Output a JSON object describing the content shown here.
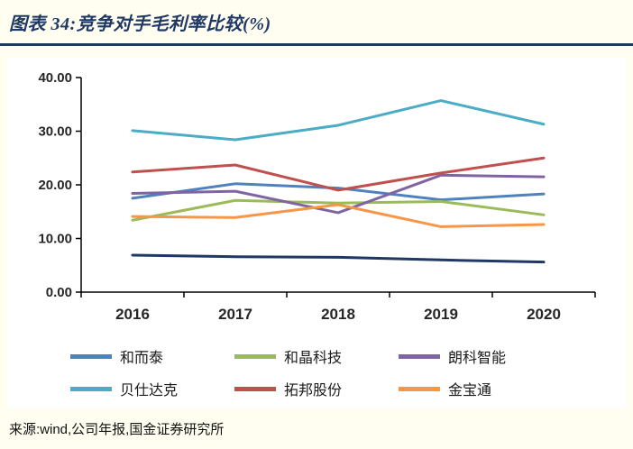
{
  "header": {
    "title": "图表 34:竞争对手毛利率比较(%)"
  },
  "chart_data": {
    "type": "line",
    "title": "竞争对手毛利率比较(%)",
    "xlabel": "",
    "ylabel": "",
    "categories": [
      "2016",
      "2017",
      "2018",
      "2019",
      "2020"
    ],
    "series": [
      {
        "name": "和而泰",
        "color": "#4F81BD",
        "values": [
          17.5,
          20.2,
          19.4,
          17.2,
          18.3
        ]
      },
      {
        "name": "和晶科技",
        "color": "#9BBB59",
        "values": [
          13.4,
          17.1,
          16.6,
          16.9,
          14.4
        ]
      },
      {
        "name": "朗科智能",
        "color": "#8064A2",
        "values": [
          18.4,
          18.8,
          14.8,
          21.8,
          21.5
        ]
      },
      {
        "name": "贝仕达克",
        "color": "#4BACC6",
        "values": [
          30.1,
          28.4,
          31.1,
          35.7,
          31.3
        ]
      },
      {
        "name": "拓邦股份",
        "color": "#C0504D",
        "values": [
          22.4,
          23.7,
          19.0,
          22.2,
          25.0
        ]
      },
      {
        "name": "金宝通",
        "color": "#F79646",
        "values": [
          14.1,
          13.9,
          16.3,
          12.2,
          12.6
        ]
      },
      {
        "name": "",
        "color": "#1F3864",
        "values": [
          6.9,
          6.6,
          6.5,
          6.0,
          5.6
        ]
      }
    ],
    "ylim": [
      0,
      40
    ],
    "yticks": [
      0,
      10,
      20,
      30,
      40
    ],
    "ytick_format": "0.00",
    "grid": false,
    "legend_position": "bottom"
  },
  "footer": {
    "source": "来源:wind,公司年报,国金证券研究所"
  }
}
